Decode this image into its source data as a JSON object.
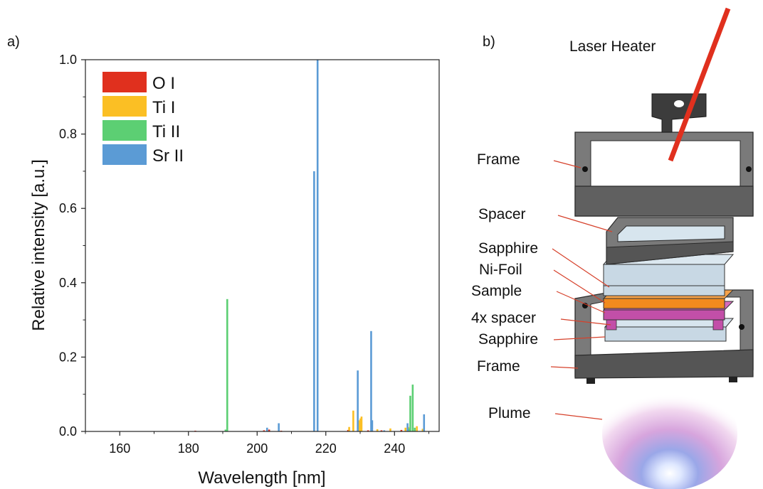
{
  "panels": {
    "a_label": "a)",
    "b_label": "b)"
  },
  "chart_data": {
    "type": "bar",
    "xlabel": "Wavelength [nm]",
    "ylabel": "Relative intensity [a.u.]",
    "xlim": [
      150,
      253
    ],
    "ylim": [
      0,
      1.0
    ],
    "xticks": [
      160,
      180,
      200,
      220,
      240
    ],
    "yticks": [
      0.0,
      0.2,
      0.4,
      0.6,
      0.8,
      1.0
    ],
    "ytick_labels": [
      "0.0",
      "0.2",
      "0.4",
      "0.6",
      "0.8",
      "1.0"
    ],
    "grid": false,
    "legend_position": "top-left",
    "series": [
      {
        "name": "O I",
        "color": "#e0301e",
        "x": [
          182.0,
          202.0,
          203.5,
          207.0,
          226.5,
          232.3,
          236.2,
          242.0
        ],
        "values": [
          0.002,
          0.003,
          0.005,
          0.002,
          0.004,
          0.003,
          0.003,
          0.004
        ]
      },
      {
        "name": "Ti I",
        "color": "#fbbf24",
        "x": [
          226.8,
          228.0,
          229.6,
          230.1,
          230.4,
          235.0,
          238.8,
          243.2,
          244.0,
          246.5,
          248.2
        ],
        "values": [
          0.012,
          0.056,
          0.03,
          0.035,
          0.04,
          0.006,
          0.008,
          0.01,
          0.012,
          0.014,
          0.007
        ]
      },
      {
        "name": "Ti II",
        "color": "#5ccf73",
        "x": [
          190.8,
          191.3,
          244.2,
          244.6,
          245.3,
          245.9
        ],
        "values": [
          0.005,
          0.356,
          0.008,
          0.096,
          0.126,
          0.01
        ]
      },
      {
        "name": "Sr II",
        "color": "#5b9bd5",
        "x": [
          202.9,
          206.3,
          216.6,
          217.6,
          229.3,
          233.2,
          233.5,
          237.0,
          243.8,
          248.6
        ],
        "values": [
          0.01,
          0.022,
          0.7,
          1.0,
          0.164,
          0.27,
          0.03,
          0.003,
          0.022,
          0.046
        ]
      }
    ]
  },
  "diagram": {
    "title": "Laser Heater",
    "callouts": [
      "Frame",
      "Spacer",
      "Sapphire",
      "Ni-Foil",
      "Sample",
      "4x spacer",
      "Sapphire",
      "Frame",
      "Plume"
    ],
    "colors": {
      "frame": "#6b6b6b",
      "sapphire": "#c8d8e4",
      "ni_foil": "#f28a1e",
      "sample": "#c24fa8",
      "laser": "#e0301e",
      "leader": "#d6412b"
    }
  }
}
